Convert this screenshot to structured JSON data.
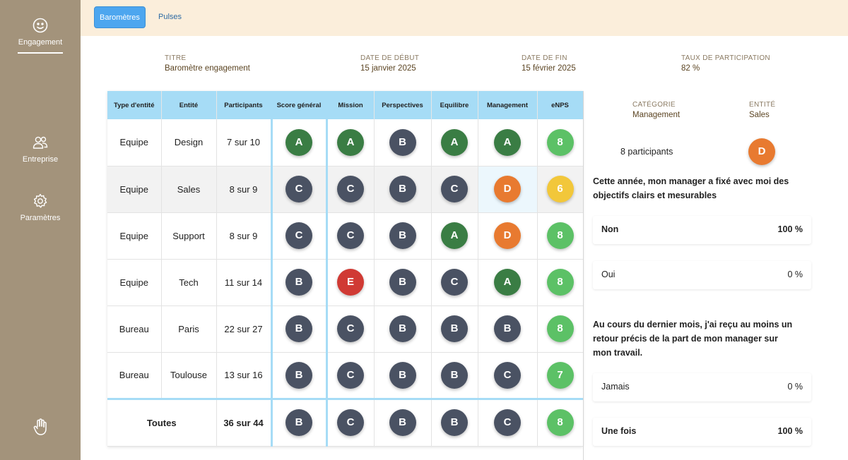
{
  "sidebar": {
    "items": [
      {
        "label": "Engagement",
        "icon": "smiley-icon"
      },
      {
        "label": "Entreprise",
        "icon": "users-icon"
      },
      {
        "label": "Paramètres",
        "icon": "gear-icon"
      }
    ],
    "bottom_icon": "hand-icon"
  },
  "tabs": [
    {
      "label": "Baromètres",
      "active": true
    },
    {
      "label": "Pulses",
      "active": false
    }
  ],
  "info": {
    "titre_label": "TITRE",
    "titre_value": "Baromètre engagement",
    "debut_label": "DATE DE DÉBUT",
    "debut_value": "15 janvier 2025",
    "fin_label": "DATE DE FIN",
    "fin_value": "15 février 2025",
    "taux_label": "TAUX DE PARTICIPATION",
    "taux_value": "82 %"
  },
  "table": {
    "headers": [
      "Type d'entité",
      "Entité",
      "Participants",
      "Score général",
      "Mission",
      "Perspectives",
      "Equilibre",
      "Management",
      "eNPS"
    ],
    "rows": [
      {
        "type": "Equipe",
        "entite": "Design",
        "participants": "7 sur 10",
        "scores": [
          "A",
          "A",
          "B",
          "A",
          "A",
          "8"
        ]
      },
      {
        "type": "Equipe",
        "entite": "Sales",
        "participants": "8 sur 9",
        "scores": [
          "C",
          "C",
          "B",
          "C",
          "D",
          "6"
        ]
      },
      {
        "type": "Equipe",
        "entite": "Support",
        "participants": "8 sur 9",
        "scores": [
          "C",
          "C",
          "B",
          "A",
          "D",
          "8"
        ]
      },
      {
        "type": "Equipe",
        "entite": "Tech",
        "participants": "11 sur 14",
        "scores": [
          "B",
          "E",
          "B",
          "C",
          "A",
          "8"
        ]
      },
      {
        "type": "Bureau",
        "entite": "Paris",
        "participants": "22 sur 27",
        "scores": [
          "B",
          "C",
          "B",
          "B",
          "B",
          "8"
        ]
      },
      {
        "type": "Bureau",
        "entite": "Toulouse",
        "participants": "13 sur 16",
        "scores": [
          "B",
          "C",
          "B",
          "B",
          "C",
          "7"
        ]
      }
    ],
    "total": {
      "label": "Toutes",
      "participants": "36 sur 44",
      "scores": [
        "B",
        "C",
        "B",
        "B",
        "C",
        "8"
      ]
    }
  },
  "colors": {
    "A": "#3a7d44",
    "B": "#4a5263",
    "C": "#4a5263",
    "D": "#e87a30",
    "E": "#d03a34",
    "enps_high": "#5cc166",
    "enps_mid": "#f2c73a",
    "header_bg": "#a6dcf6",
    "sidebar_bg": "#a3937b",
    "topbar_bg": "#fbeedb"
  },
  "detail": {
    "categorie_label": "CATÉGORIE",
    "categorie_value": "Management",
    "entite_label": "ENTITÉ",
    "entite_value": "Sales",
    "participants": "8 participants",
    "score": "D",
    "questions": [
      {
        "text": "Cette année, mon manager a fixé avec moi des objectifs clairs et mesurables",
        "answers": [
          {
            "label": "Non",
            "percent": "100 %",
            "bold": true
          },
          {
            "label": "Oui",
            "percent": "0 %",
            "bold": false
          }
        ]
      },
      {
        "text": "Au cours du dernier mois, j'ai reçu au moins un retour précis de la part de mon manager sur mon travail.",
        "answers": [
          {
            "label": "Jamais",
            "percent": "0 %",
            "bold": false
          },
          {
            "label": "Une fois",
            "percent": "100 %",
            "bold": true
          }
        ]
      }
    ]
  }
}
